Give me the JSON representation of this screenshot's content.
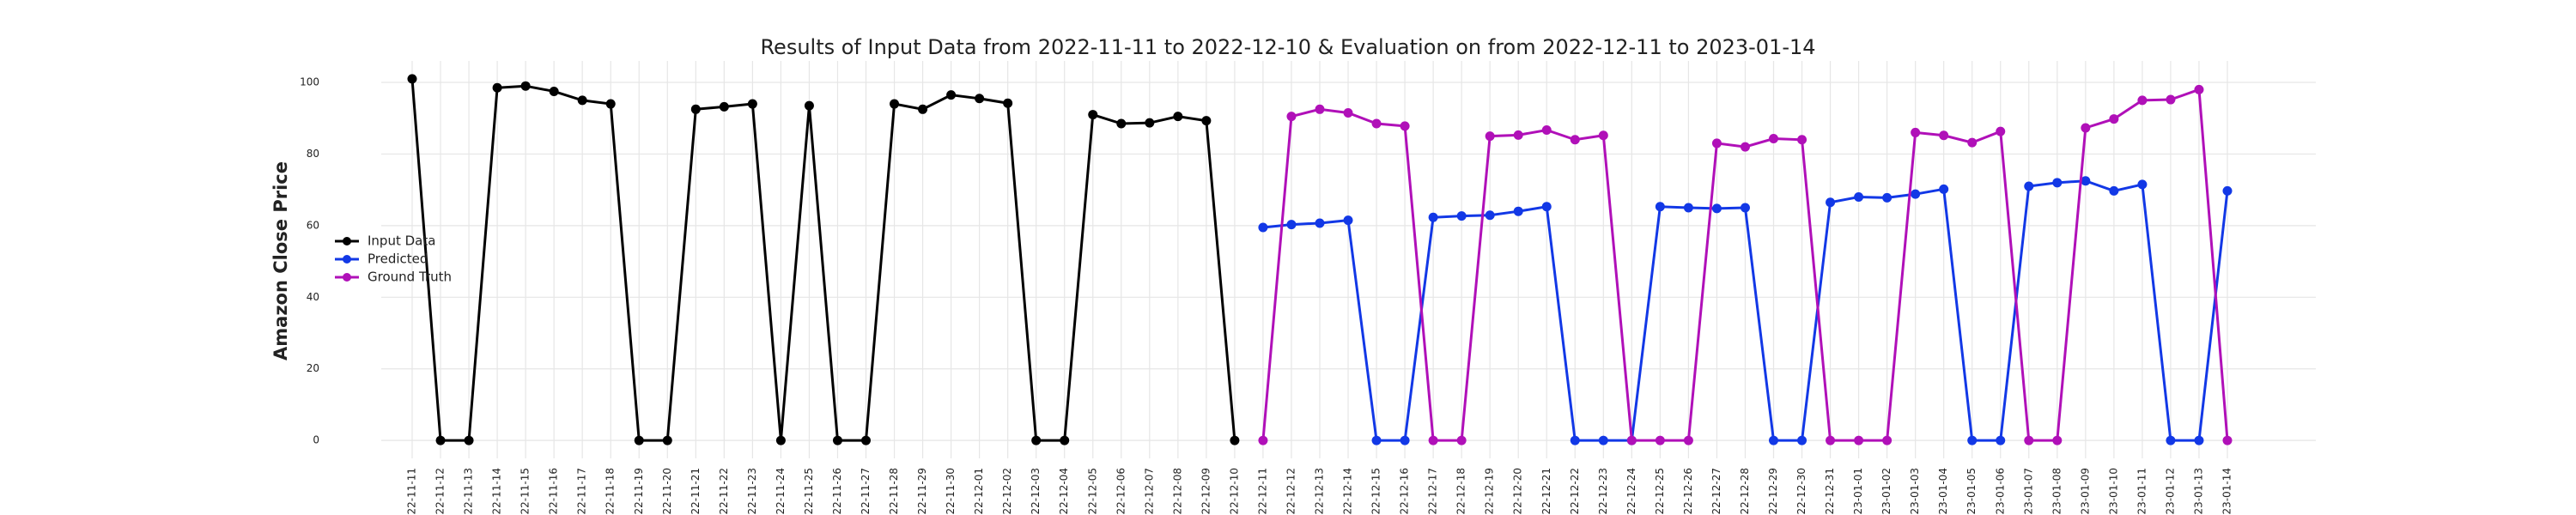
{
  "chart_data": {
    "type": "line",
    "title": "Results of Input Data from 2022-11-11 to 2022-12-10 & Evaluation on from 2022-12-11 to 2023-01-14",
    "y_label": "Amazon Close Price",
    "categories": [
      "2022-11-11",
      "2022-11-12",
      "2022-11-13",
      "2022-11-14",
      "2022-11-15",
      "2022-11-16",
      "2022-11-17",
      "2022-11-18",
      "2022-11-19",
      "2022-11-20",
      "2022-11-21",
      "2022-11-22",
      "2022-11-23",
      "2022-11-24",
      "2022-11-25",
      "2022-11-26",
      "2022-11-27",
      "2022-11-28",
      "2022-11-29",
      "2022-11-30",
      "2022-12-01",
      "2022-12-02",
      "2022-12-03",
      "2022-12-04",
      "2022-12-05",
      "2022-12-06",
      "2022-12-07",
      "2022-12-08",
      "2022-12-09",
      "2022-12-10",
      "2022-12-11",
      "2022-12-12",
      "2022-12-13",
      "2022-12-14",
      "2022-12-15",
      "2022-12-16",
      "2022-12-17",
      "2022-12-18",
      "2022-12-19",
      "2022-12-20",
      "2022-12-21",
      "2022-12-22",
      "2022-12-23",
      "2022-12-24",
      "2022-12-25",
      "2022-12-26",
      "2022-12-27",
      "2022-12-28",
      "2022-12-29",
      "2022-12-30",
      "2022-12-31",
      "2023-01-01",
      "2023-01-02",
      "2023-01-03",
      "2023-01-04",
      "2023-01-05",
      "2023-01-06",
      "2023-01-07",
      "2023-01-08",
      "2023-01-09",
      "2023-01-10",
      "2023-01-11",
      "2023-01-12",
      "2023-01-13",
      "2023-01-14"
    ],
    "series": [
      {
        "name": "Input Data",
        "color": "#000000",
        "values": [
          101,
          0,
          0,
          98.5,
          99,
          97.5,
          95,
          94,
          0,
          0,
          92.5,
          93.2,
          94,
          0,
          93.5,
          0,
          0,
          94,
          92.5,
          96.5,
          95.5,
          94.2,
          0,
          0,
          91,
          88.5,
          88.7,
          90.5,
          89.3,
          0,
          null,
          null,
          null,
          null,
          null,
          null,
          null,
          null,
          null,
          null,
          null,
          null,
          null,
          null,
          null,
          null,
          null,
          null,
          null,
          null,
          null,
          null,
          null,
          null,
          null,
          null,
          null,
          null,
          null,
          null,
          null,
          null,
          null,
          null,
          null
        ]
      },
      {
        "name": "Predicted",
        "color": "#1238e6",
        "values": [
          null,
          null,
          null,
          null,
          null,
          null,
          null,
          null,
          null,
          null,
          null,
          null,
          null,
          null,
          null,
          null,
          null,
          null,
          null,
          null,
          null,
          null,
          null,
          null,
          null,
          null,
          null,
          null,
          null,
          null,
          59.5,
          60.3,
          60.7,
          61.5,
          0,
          0,
          62.3,
          62.7,
          62.9,
          64,
          65.3,
          0,
          0,
          0,
          65.3,
          65,
          64.8,
          65,
          0,
          0,
          66.5,
          68,
          67.8,
          68.8,
          70.2,
          0,
          0,
          71,
          72,
          72.5,
          69.7,
          71.5,
          0,
          0,
          69.7
        ]
      },
      {
        "name": "Ground Truth",
        "color": "#b010b8",
        "values": [
          null,
          null,
          null,
          null,
          null,
          null,
          null,
          null,
          null,
          null,
          null,
          null,
          null,
          null,
          null,
          null,
          null,
          null,
          null,
          null,
          null,
          null,
          null,
          null,
          null,
          null,
          null,
          null,
          null,
          null,
          0,
          90.5,
          92.5,
          91.5,
          88.5,
          87.8,
          0,
          0,
          85,
          85.3,
          86.7,
          84,
          85.2,
          0,
          0,
          0,
          83,
          82,
          84.3,
          84,
          0,
          0,
          0,
          86,
          85.2,
          83.2,
          86.3,
          0,
          0,
          87.3,
          89.8,
          95,
          95.2,
          98,
          0
        ]
      }
    ],
    "ylim": [
      -5,
      106
    ],
    "yticks": [
      0,
      20,
      40,
      60,
      80,
      100
    ],
    "grid": true,
    "legend": "left"
  }
}
